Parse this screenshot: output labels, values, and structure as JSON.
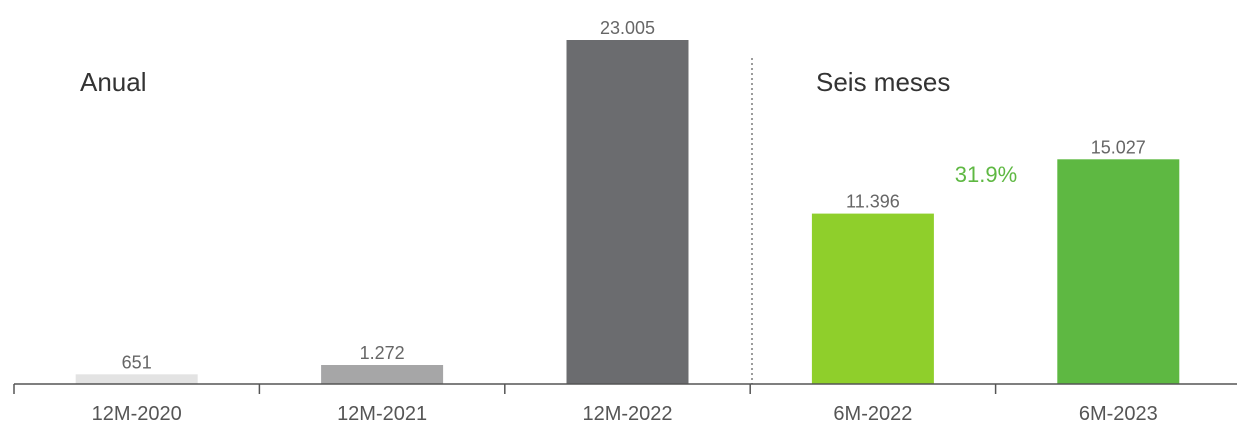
{
  "chart_data": {
    "type": "bar",
    "categories": [
      "12M-2020",
      "12M-2021",
      "12M-2022",
      "6M-2022",
      "6M-2023"
    ],
    "values": [
      651,
      1272,
      23005,
      11396,
      15027
    ],
    "value_labels": [
      "651",
      "1.272",
      "23.005",
      "11.396",
      "15.027"
    ],
    "bar_colors": [
      "#e3e3e3",
      "#a6a6a7",
      "#6b6c6f",
      "#8fcf2b",
      "#5eb842"
    ],
    "groups": [
      {
        "title": "Anual",
        "categories": [
          "12M-2020",
          "12M-2021",
          "12M-2022"
        ]
      },
      {
        "title": "Seis meses",
        "categories": [
          "6M-2022",
          "6M-2023"
        ]
      }
    ],
    "annotation": {
      "text": "31.9%",
      "color": "#5eb842"
    },
    "ylim": [
      0,
      23005
    ],
    "grid": false,
    "axis_color": "#555555",
    "divider": "dotted"
  }
}
